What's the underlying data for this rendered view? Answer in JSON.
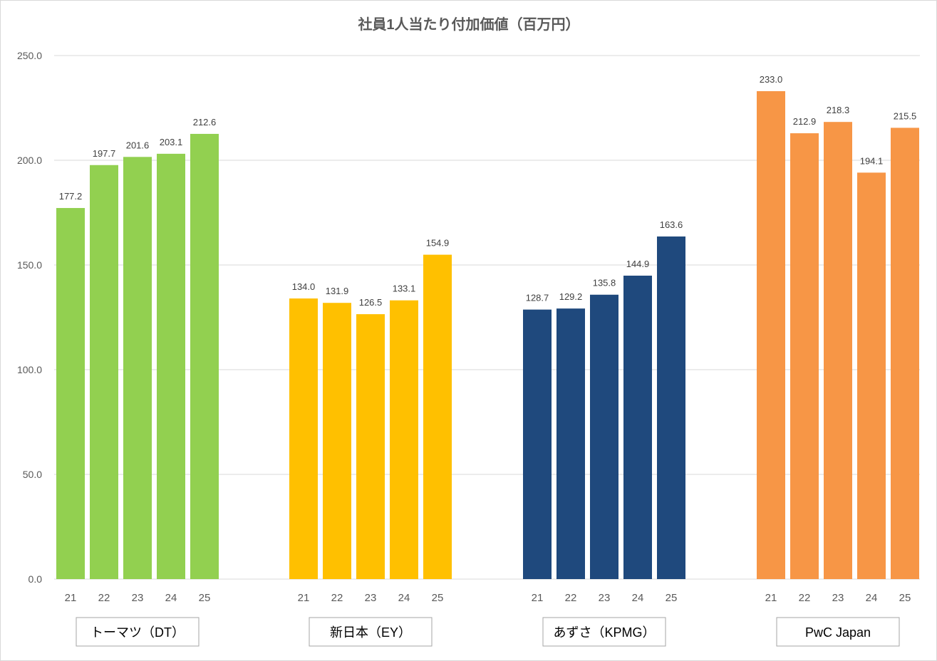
{
  "chart_data": {
    "type": "bar",
    "title": "社員1人当たり付加価値（百万円）",
    "xlabel": "",
    "ylabel": "",
    "ylim": [
      0,
      250
    ],
    "yticks": [
      "0.0",
      "50.0",
      "100.0",
      "150.0",
      "200.0",
      "250.0"
    ],
    "grid": true,
    "legend": "none",
    "categories": [
      "21",
      "22",
      "23",
      "24",
      "25"
    ],
    "groups": [
      {
        "name": "トーマツ（DT）",
        "color": "#92d050",
        "values": [
          177.2,
          197.7,
          201.6,
          203.1,
          212.6
        ],
        "labels": [
          "177.2",
          "197.7",
          "201.6",
          "203.1",
          "212.6"
        ]
      },
      {
        "name": "新日本（EY）",
        "color": "#ffc000",
        "values": [
          134.0,
          131.9,
          126.5,
          133.1,
          154.9
        ],
        "labels": [
          "134.0",
          "131.9",
          "126.5",
          "133.1",
          "154.9"
        ]
      },
      {
        "name": "あずさ（KPMG）",
        "color": "#1f497d",
        "values": [
          128.7,
          129.2,
          135.8,
          144.9,
          163.6
        ],
        "labels": [
          "128.7",
          "129.2",
          "135.8",
          "144.9",
          "163.6"
        ]
      },
      {
        "name": "PwC Japan",
        "color": "#f79646",
        "values": [
          233.0,
          212.9,
          218.3,
          194.1,
          215.5
        ],
        "labels": [
          "233.0",
          "212.9",
          "218.3",
          "194.1",
          "215.5"
        ]
      }
    ]
  }
}
